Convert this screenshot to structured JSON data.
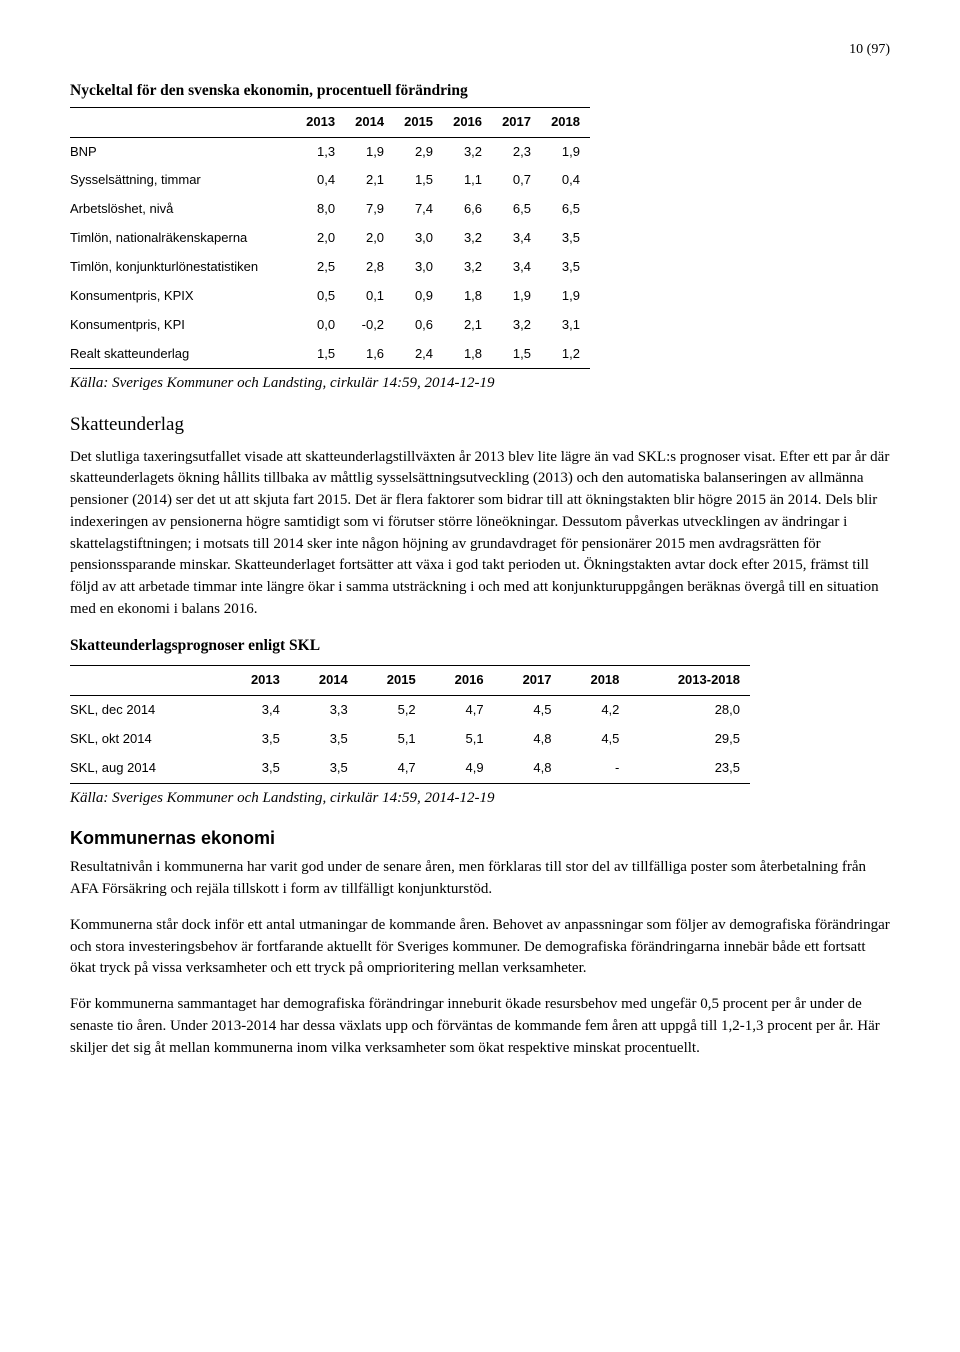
{
  "page_number": "10 (97)",
  "table1": {
    "title": "Nyckeltal för den svenska ekonomin, procentuell förändring",
    "headers": [
      "",
      "2013",
      "2014",
      "2015",
      "2016",
      "2017",
      "2018"
    ],
    "rows": [
      [
        "BNP",
        "1,3",
        "1,9",
        "2,9",
        "3,2",
        "2,3",
        "1,9"
      ],
      [
        "Sysselsättning, timmar",
        "0,4",
        "2,1",
        "1,5",
        "1,1",
        "0,7",
        "0,4"
      ],
      [
        "Arbetslöshet, nivå",
        "8,0",
        "7,9",
        "7,4",
        "6,6",
        "6,5",
        "6,5"
      ],
      [
        "Timlön, nationalräkenskaperna",
        "2,0",
        "2,0",
        "3,0",
        "3,2",
        "3,4",
        "3,5"
      ],
      [
        "Timlön, konjunkturlönestatistiken",
        "2,5",
        "2,8",
        "3,0",
        "3,2",
        "3,4",
        "3,5"
      ],
      [
        "Konsumentpris, KPIX",
        "0,5",
        "0,1",
        "0,9",
        "1,8",
        "1,9",
        "1,9"
      ],
      [
        "Konsumentpris, KPI",
        "0,0",
        "-0,2",
        "0,6",
        "2,1",
        "3,2",
        "3,1"
      ],
      [
        "Realt skatteunderlag",
        "1,5",
        "1,6",
        "2,4",
        "1,8",
        "1,5",
        "1,2"
      ]
    ],
    "source": "Källa: Sveriges Kommuner och Landsting, cirkulär 14:59, 2014-12-19"
  },
  "skatteunderlag": {
    "heading": "Skatteunderlag",
    "body": "Det slutliga taxeringsutfallet visade att skatteunderlagstillväxten år 2013 blev lite lägre än vad SKL:s prognoser visat. Efter ett par år där skatteunderlagets ökning hållits tillbaka av måttlig sysselsättningsutveckling (2013) och den automatiska balanseringen av allmänna pensioner (2014) ser det ut att skjuta fart 2015. Det är flera faktorer som bidrar till att ökningstakten blir högre 2015 än 2014. Dels blir indexeringen av pensionerna högre samtidigt som vi förutser större löneökningar. Dessutom påverkas utvecklingen av ändringar i skattelagstiftningen; i motsats till 2014 sker inte någon höjning av grundavdraget för pensionärer 2015 men avdragsrätten för pensionssparande minskar. Skatteunderlaget fortsätter att växa i god takt perioden ut. Ökningstakten avtar dock efter 2015, främst till följd av att arbetade timmar inte längre ökar i samma utsträckning i och med att konjunkturuppgången beräknas övergå till en situation med en ekonomi i balans 2016."
  },
  "table2": {
    "title": "Skatteunderlagsprognoser enligt SKL",
    "headers": [
      "",
      "2013",
      "2014",
      "2015",
      "2016",
      "2017",
      "2018",
      "2013-2018"
    ],
    "rows": [
      [
        "SKL, dec 2014",
        "3,4",
        "3,3",
        "5,2",
        "4,7",
        "4,5",
        "4,2",
        "28,0"
      ],
      [
        "SKL, okt 2014",
        "3,5",
        "3,5",
        "5,1",
        "5,1",
        "4,8",
        "4,5",
        "29,5"
      ],
      [
        "SKL, aug 2014",
        "3,5",
        "3,5",
        "4,7",
        "4,9",
        "4,8",
        "-",
        "23,5"
      ]
    ],
    "source": "Källa: Sveriges Kommuner och Landsting, cirkulär 14:59, 2014-12-19"
  },
  "kommunernas": {
    "heading": "Kommunernas ekonomi",
    "p1": "Resultatnivån i kommunerna har varit god under de senare åren, men förklaras till stor del av tillfälliga poster som återbetalning från AFA Försäkring och rejäla tillskott i form av tillfälligt konjunkturstöd.",
    "p2": "Kommunerna står dock inför ett antal utmaningar de kommande åren. Behovet av anpassningar som följer av demografiska förändringar och stora investeringsbehov är fortfarande aktuellt för Sveriges kommuner. De demografiska förändringarna innebär både ett fortsatt ökat tryck på vissa verksamheter och ett tryck på omprioritering mellan verksamheter.",
    "p3": "För kommunerna sammantaget har demografiska förändringar inneburit ökade resursbehov med ungefär 0,5 procent per år under de senaste tio åren. Under 2013-2014 har dessa växlats upp och förväntas de kommande fem åren att uppgå till 1,2-1,3 procent per år. Här skiljer det sig åt mellan kommunerna inom vilka verksamheter som ökat respektive minskat procentuellt."
  }
}
